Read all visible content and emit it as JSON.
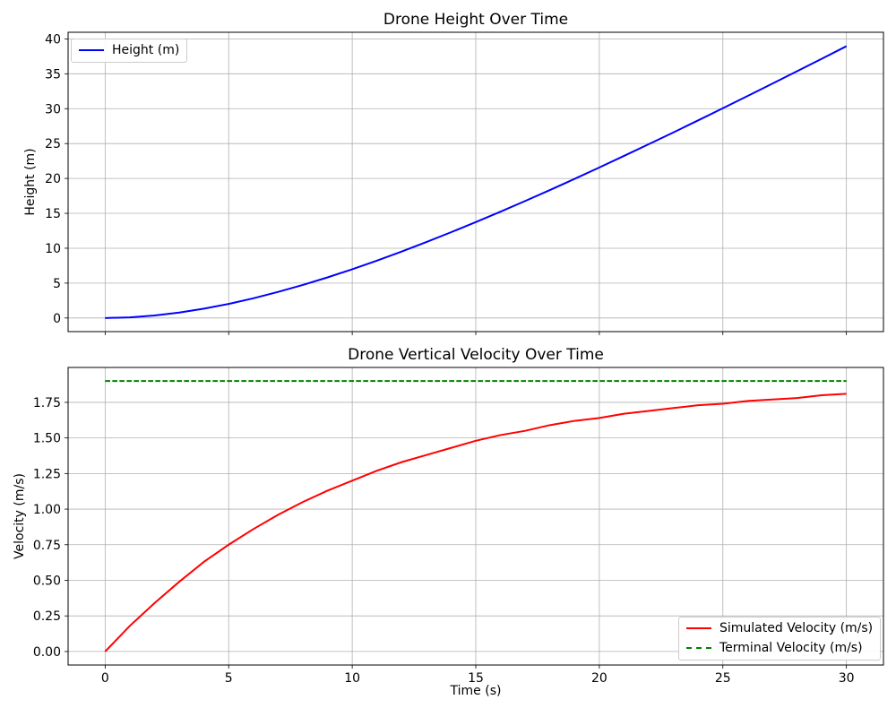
{
  "figure": {
    "background": "#ffffff",
    "grid_color": "#b0b0b0",
    "spine_color": "#000000",
    "text_color": "#000000"
  },
  "chart_data": [
    {
      "type": "line",
      "title": "Drone Height Over Time",
      "xlabel": "",
      "ylabel": "Height (m)",
      "grid": true,
      "xlim": [
        -1.5,
        31.5
      ],
      "ylim": [
        -1.95,
        40.95
      ],
      "x": [
        0,
        1,
        2,
        3,
        4,
        5,
        6,
        7,
        8,
        9,
        10,
        11,
        12,
        13,
        14,
        15,
        16,
        17,
        18,
        19,
        20,
        21,
        22,
        23,
        24,
        25,
        26,
        27,
        28,
        29,
        30
      ],
      "series": [
        {
          "name": "Height (m)",
          "slug": "height-line",
          "color": "#0000ff",
          "dash": false,
          "values": [
            0,
            0.09,
            0.36,
            0.78,
            1.34,
            2.02,
            2.83,
            3.74,
            4.74,
            5.82,
            6.99,
            8.22,
            9.52,
            10.88,
            12.29,
            13.74,
            15.24,
            16.77,
            18.34,
            19.94,
            21.57,
            23.23,
            24.91,
            26.6,
            28.32,
            30.06,
            31.81,
            33.58,
            35.36,
            37.15,
            38.95
          ]
        }
      ],
      "xticks": {
        "values": [
          0,
          5,
          10,
          15,
          20,
          25,
          30
        ],
        "labels": []
      },
      "yticks": {
        "values": [
          0,
          5,
          10,
          15,
          20,
          25,
          30,
          35,
          40
        ],
        "labels": [
          "0",
          "5",
          "10",
          "15",
          "20",
          "25",
          "30",
          "35",
          "40"
        ]
      },
      "legend": {
        "location": "upper left",
        "entries": [
          {
            "label": "Height (m)",
            "color": "#0000ff",
            "dash": false
          }
        ]
      }
    },
    {
      "type": "line",
      "title": "Drone Vertical Velocity Over Time",
      "xlabel": "Time (s)",
      "ylabel": "Velocity (m/s)",
      "grid": true,
      "xlim": [
        -1.5,
        31.5
      ],
      "ylim": [
        -0.095,
        1.995
      ],
      "x": [
        0,
        1,
        2,
        3,
        4,
        5,
        6,
        7,
        8,
        9,
        10,
        11,
        12,
        13,
        14,
        15,
        16,
        17,
        18,
        19,
        20,
        21,
        22,
        23,
        24,
        25,
        26,
        27,
        28,
        29,
        30
      ],
      "series": [
        {
          "name": "Simulated Velocity (m/s)",
          "slug": "simulated-velocity-line",
          "color": "#ff0000",
          "dash": false,
          "values": [
            0,
            0.18,
            0.34,
            0.49,
            0.63,
            0.75,
            0.86,
            0.96,
            1.05,
            1.13,
            1.2,
            1.27,
            1.33,
            1.38,
            1.43,
            1.48,
            1.52,
            1.55,
            1.59,
            1.62,
            1.64,
            1.67,
            1.69,
            1.71,
            1.73,
            1.74,
            1.76,
            1.77,
            1.78,
            1.8,
            1.81
          ]
        },
        {
          "name": "Terminal Velocity (m/s)",
          "slug": "terminal-velocity-line",
          "color": "#008000",
          "dash": true,
          "x": [
            0,
            30
          ],
          "values": [
            1.9,
            1.9
          ]
        }
      ],
      "xticks": {
        "values": [
          0,
          5,
          10,
          15,
          20,
          25,
          30
        ],
        "labels": [
          "0",
          "5",
          "10",
          "15",
          "20",
          "25",
          "30"
        ]
      },
      "yticks": {
        "values": [
          0,
          0.25,
          0.5,
          0.75,
          1.0,
          1.25,
          1.5,
          1.75
        ],
        "labels": [
          "0.00",
          "0.25",
          "0.50",
          "0.75",
          "1.00",
          "1.25",
          "1.50",
          "1.75"
        ]
      },
      "legend": {
        "location": "lower right",
        "entries": [
          {
            "label": "Simulated Velocity (m/s)",
            "color": "#ff0000",
            "dash": false
          },
          {
            "label": "Terminal Velocity (m/s)",
            "color": "#008000",
            "dash": true
          }
        ]
      }
    }
  ]
}
